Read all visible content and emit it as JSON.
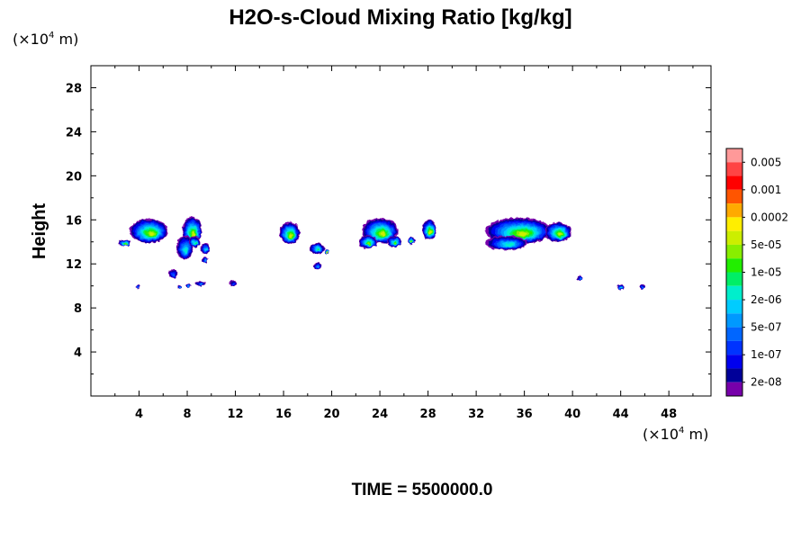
{
  "chart_data": {
    "type": "contour",
    "title": "H2O-s-Cloud Mixing Ratio [kg/kg]",
    "ylabel": "Height",
    "xlabel": "",
    "x_unit": {
      "prefix": "(×10",
      "exponent": "4",
      "suffix": " m)"
    },
    "y_unit": {
      "prefix": "(×10",
      "exponent": "4",
      "suffix": " m)"
    },
    "xlim": [
      0,
      51.5
    ],
    "ylim": [
      0,
      30
    ],
    "x_ticks": [
      4,
      8,
      12,
      16,
      20,
      24,
      28,
      32,
      36,
      40,
      44,
      48
    ],
    "y_ticks": [
      4,
      8,
      12,
      16,
      20,
      24,
      28
    ],
    "colorbar": {
      "labels": [
        "0.005",
        "0.001",
        "0.0002",
        "5e-05",
        "1e-05",
        "2e-06",
        "5e-07",
        "1e-07",
        "2e-08"
      ],
      "colors": [
        "#ff9999",
        "#ff4444",
        "#ff0000",
        "#ff5500",
        "#ffaa00",
        "#ffee00",
        "#ccee00",
        "#88ee00",
        "#22ee00",
        "#00ee66",
        "#00eecc",
        "#00ccff",
        "#0099ff",
        "#0066ff",
        "#0033ff",
        "#0000ee",
        "#000099",
        "#7700aa"
      ]
    },
    "cloud_regions": [
      {
        "x": 4.8,
        "y": 15.0,
        "w": 3.2,
        "h": 2.2,
        "level": 6
      },
      {
        "x": 2.8,
        "y": 13.9,
        "w": 1.0,
        "h": 0.6,
        "level": 7
      },
      {
        "x": 8.4,
        "y": 15.0,
        "w": 1.6,
        "h": 2.6,
        "level": 6
      },
      {
        "x": 7.8,
        "y": 13.5,
        "w": 1.4,
        "h": 2.2,
        "level": 10
      },
      {
        "x": 8.6,
        "y": 14.0,
        "w": 1.0,
        "h": 1.0,
        "level": 9
      },
      {
        "x": 9.5,
        "y": 13.4,
        "w": 0.8,
        "h": 1.0,
        "level": 11
      },
      {
        "x": 9.5,
        "y": 12.4,
        "w": 0.5,
        "h": 0.6,
        "level": 12
      },
      {
        "x": 6.8,
        "y": 11.1,
        "w": 0.8,
        "h": 0.8,
        "level": 13
      },
      {
        "x": 3.9,
        "y": 9.9,
        "w": 0.3,
        "h": 0.4,
        "level": 12
      },
      {
        "x": 7.4,
        "y": 9.9,
        "w": 0.3,
        "h": 0.4,
        "level": 11
      },
      {
        "x": 8.1,
        "y": 10.0,
        "w": 0.3,
        "h": 0.4,
        "level": 12
      },
      {
        "x": 9.1,
        "y": 10.2,
        "w": 0.8,
        "h": 0.5,
        "level": 12
      },
      {
        "x": 11.8,
        "y": 10.2,
        "w": 0.6,
        "h": 0.6,
        "level": 14
      },
      {
        "x": 16.5,
        "y": 14.8,
        "w": 1.7,
        "h": 2.0,
        "level": 6
      },
      {
        "x": 18.8,
        "y": 13.4,
        "w": 1.2,
        "h": 1.0,
        "level": 9
      },
      {
        "x": 19.6,
        "y": 13.1,
        "w": 0.3,
        "h": 0.3,
        "level": 4
      },
      {
        "x": 18.8,
        "y": 11.8,
        "w": 0.7,
        "h": 0.6,
        "level": 12
      },
      {
        "x": 24.0,
        "y": 15.0,
        "w": 3.0,
        "h": 2.3,
        "level": 6
      },
      {
        "x": 23.0,
        "y": 14.0,
        "w": 1.5,
        "h": 1.2,
        "level": 7
      },
      {
        "x": 25.2,
        "y": 14.0,
        "w": 1.2,
        "h": 1.0,
        "level": 7
      },
      {
        "x": 26.6,
        "y": 14.1,
        "w": 0.6,
        "h": 0.7,
        "level": 6
      },
      {
        "x": 28.1,
        "y": 15.1,
        "w": 1.2,
        "h": 1.8,
        "level": 6
      },
      {
        "x": 35.5,
        "y": 15.0,
        "w": 5.5,
        "h": 2.4,
        "level": 6
      },
      {
        "x": 34.5,
        "y": 13.9,
        "w": 3.5,
        "h": 1.3,
        "level": 10
      },
      {
        "x": 38.8,
        "y": 14.9,
        "w": 2.2,
        "h": 1.8,
        "level": 6
      },
      {
        "x": 40.6,
        "y": 10.7,
        "w": 0.4,
        "h": 0.4,
        "level": 12
      },
      {
        "x": 44.0,
        "y": 9.9,
        "w": 0.6,
        "h": 0.5,
        "level": 10
      },
      {
        "x": 45.8,
        "y": 9.9,
        "w": 0.4,
        "h": 0.5,
        "level": 12
      }
    ]
  },
  "footer": {
    "label": "TIME = 5500000.0"
  }
}
